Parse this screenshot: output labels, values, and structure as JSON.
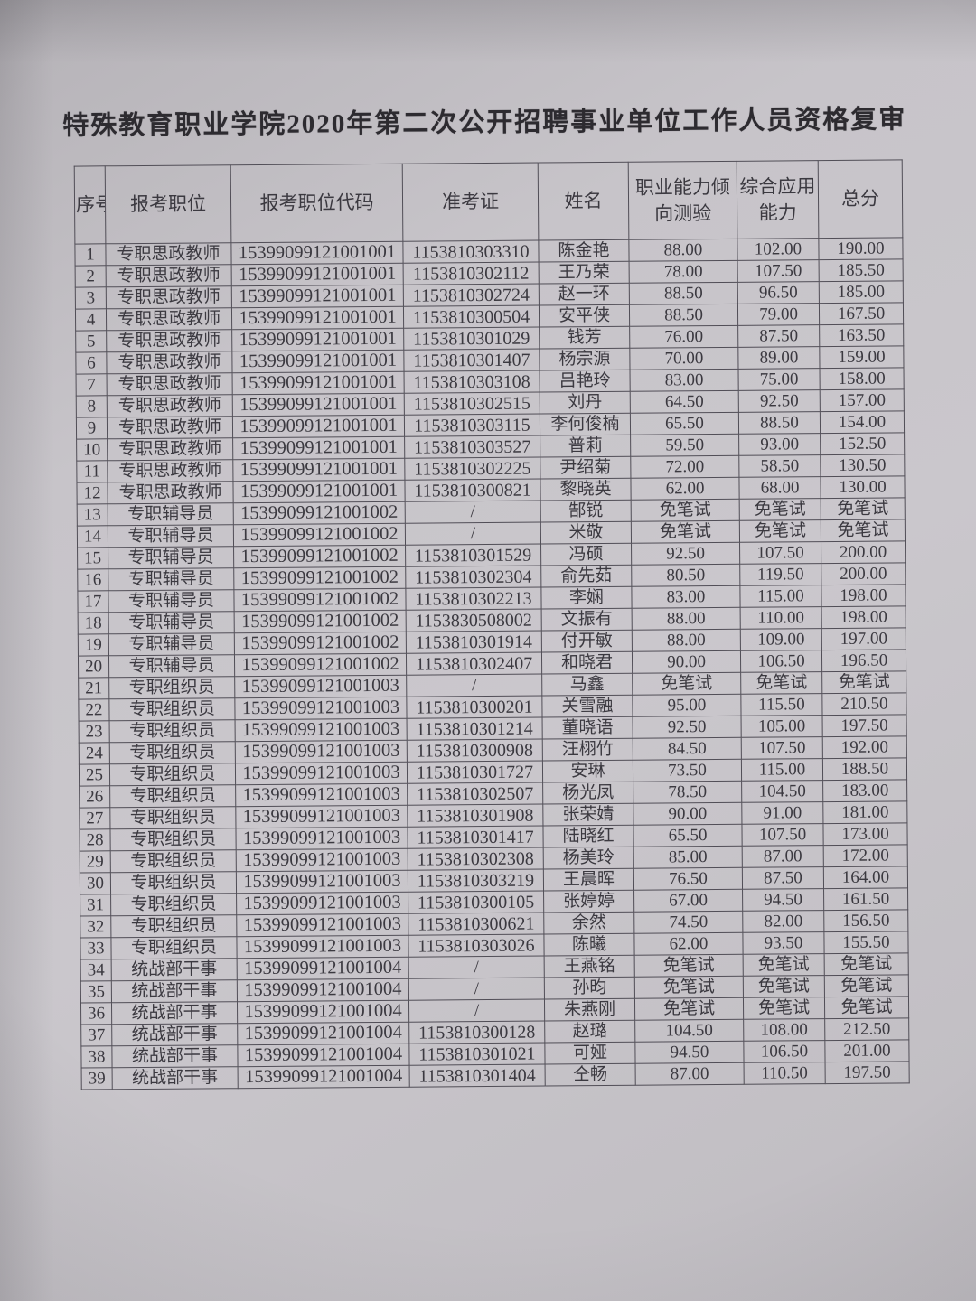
{
  "document": {
    "title": "特殊教育职业学院2020年第二次公开招聘事业单位工作人员资格复审"
  },
  "table": {
    "columns": [
      "序号",
      "报考职位",
      "报考职位代码",
      "准考证",
      "姓名",
      "职业能力倾向测验",
      "综合应用能力",
      "总分"
    ],
    "field_names": [
      "index",
      "position",
      "position-code",
      "ticket-no",
      "name",
      "aptitude-test-score",
      "comprehensive-ability-score",
      "total-score"
    ],
    "exempt_label": "免笔试",
    "no_ticket_placeholder": "/",
    "rows": [
      [
        "1",
        "专职思政教师",
        "15399099121001001",
        "1153810303310",
        "陈金艳",
        "88.00",
        "102.00",
        "190.00"
      ],
      [
        "2",
        "专职思政教师",
        "15399099121001001",
        "1153810302112",
        "王乃荣",
        "78.00",
        "107.50",
        "185.50"
      ],
      [
        "3",
        "专职思政教师",
        "15399099121001001",
        "1153810302724",
        "赵一环",
        "88.50",
        "96.50",
        "185.00"
      ],
      [
        "4",
        "专职思政教师",
        "15399099121001001",
        "1153810300504",
        "安平侠",
        "88.50",
        "79.00",
        "167.50"
      ],
      [
        "5",
        "专职思政教师",
        "15399099121001001",
        "1153810301029",
        "钱芳",
        "76.00",
        "87.50",
        "163.50"
      ],
      [
        "6",
        "专职思政教师",
        "15399099121001001",
        "1153810301407",
        "杨宗源",
        "70.00",
        "89.00",
        "159.00"
      ],
      [
        "7",
        "专职思政教师",
        "15399099121001001",
        "1153810303108",
        "吕艳玲",
        "83.00",
        "75.00",
        "158.00"
      ],
      [
        "8",
        "专职思政教师",
        "15399099121001001",
        "1153810302515",
        "刘丹",
        "64.50",
        "92.50",
        "157.00"
      ],
      [
        "9",
        "专职思政教师",
        "15399099121001001",
        "1153810303115",
        "李何俊楠",
        "65.50",
        "88.50",
        "154.00"
      ],
      [
        "10",
        "专职思政教师",
        "15399099121001001",
        "1153810303527",
        "普莉",
        "59.50",
        "93.00",
        "152.50"
      ],
      [
        "11",
        "专职思政教师",
        "15399099121001001",
        "1153810302225",
        "尹绍菊",
        "72.00",
        "58.50",
        "130.50"
      ],
      [
        "12",
        "专职思政教师",
        "15399099121001001",
        "1153810300821",
        "黎晓英",
        "62.00",
        "68.00",
        "130.00"
      ],
      [
        "13",
        "专职辅导员",
        "15399099121001002",
        "/",
        "郜锐",
        "免笔试",
        "免笔试",
        "免笔试"
      ],
      [
        "14",
        "专职辅导员",
        "15399099121001002",
        "/",
        "米敬",
        "免笔试",
        "免笔试",
        "免笔试"
      ],
      [
        "15",
        "专职辅导员",
        "15399099121001002",
        "1153810301529",
        "冯硕",
        "92.50",
        "107.50",
        "200.00"
      ],
      [
        "16",
        "专职辅导员",
        "15399099121001002",
        "1153810302304",
        "俞先茹",
        "80.50",
        "119.50",
        "200.00"
      ],
      [
        "17",
        "专职辅导员",
        "15399099121001002",
        "1153810302213",
        "李娴",
        "83.00",
        "115.00",
        "198.00"
      ],
      [
        "18",
        "专职辅导员",
        "15399099121001002",
        "1153830508002",
        "文振有",
        "88.00",
        "110.00",
        "198.00"
      ],
      [
        "19",
        "专职辅导员",
        "15399099121001002",
        "1153810301914",
        "付开敏",
        "88.00",
        "109.00",
        "197.00"
      ],
      [
        "20",
        "专职辅导员",
        "15399099121001002",
        "1153810302407",
        "和晓君",
        "90.00",
        "106.50",
        "196.50"
      ],
      [
        "21",
        "专职组织员",
        "15399099121001003",
        "/",
        "马鑫",
        "免笔试",
        "免笔试",
        "免笔试"
      ],
      [
        "22",
        "专职组织员",
        "15399099121001003",
        "1153810300201",
        "关雪融",
        "95.00",
        "115.50",
        "210.50"
      ],
      [
        "23",
        "专职组织员",
        "15399099121001003",
        "1153810301214",
        "董晓语",
        "92.50",
        "105.00",
        "197.50"
      ],
      [
        "24",
        "专职组织员",
        "15399099121001003",
        "1153810300908",
        "汪栩竹",
        "84.50",
        "107.50",
        "192.00"
      ],
      [
        "25",
        "专职组织员",
        "15399099121001003",
        "1153810301727",
        "安琳",
        "73.50",
        "115.00",
        "188.50"
      ],
      [
        "26",
        "专职组织员",
        "15399099121001003",
        "1153810302507",
        "杨光凤",
        "78.50",
        "104.50",
        "183.00"
      ],
      [
        "27",
        "专职组织员",
        "15399099121001003",
        "1153810301908",
        "张荣婧",
        "90.00",
        "91.00",
        "181.00"
      ],
      [
        "28",
        "专职组织员",
        "15399099121001003",
        "1153810301417",
        "陆晓红",
        "65.50",
        "107.50",
        "173.00"
      ],
      [
        "29",
        "专职组织员",
        "15399099121001003",
        "1153810302308",
        "杨美玲",
        "85.00",
        "87.00",
        "172.00"
      ],
      [
        "30",
        "专职组织员",
        "15399099121001003",
        "1153810303219",
        "王晨晖",
        "76.50",
        "87.50",
        "164.00"
      ],
      [
        "31",
        "专职组织员",
        "15399099121001003",
        "1153810300105",
        "张婷婷",
        "67.00",
        "94.50",
        "161.50"
      ],
      [
        "32",
        "专职组织员",
        "15399099121001003",
        "1153810300621",
        "余然",
        "74.50",
        "82.00",
        "156.50"
      ],
      [
        "33",
        "专职组织员",
        "15399099121001003",
        "1153810303026",
        "陈曦",
        "62.00",
        "93.50",
        "155.50"
      ],
      [
        "34",
        "统战部干事",
        "15399099121001004",
        "/",
        "王燕铭",
        "免笔试",
        "免笔试",
        "免笔试"
      ],
      [
        "35",
        "统战部干事",
        "15399099121001004",
        "/",
        "孙昀",
        "免笔试",
        "免笔试",
        "免笔试"
      ],
      [
        "36",
        "统战部干事",
        "15399099121001004",
        "/",
        "朱燕刚",
        "免笔试",
        "免笔试",
        "免笔试"
      ],
      [
        "37",
        "统战部干事",
        "15399099121001004",
        "1153810300128",
        "赵璐",
        "104.50",
        "108.00",
        "212.50"
      ],
      [
        "38",
        "统战部干事",
        "15399099121001004",
        "1153810301021",
        "可娅",
        "94.50",
        "106.50",
        "201.00"
      ],
      [
        "39",
        "统战部干事",
        "15399099121001004",
        "1153810301404",
        "仝畅",
        "87.00",
        "110.50",
        "197.50"
      ]
    ]
  },
  "colors": {
    "paper": "#c7c4c9",
    "ink": "#3b3940",
    "border": "#514e57"
  }
}
